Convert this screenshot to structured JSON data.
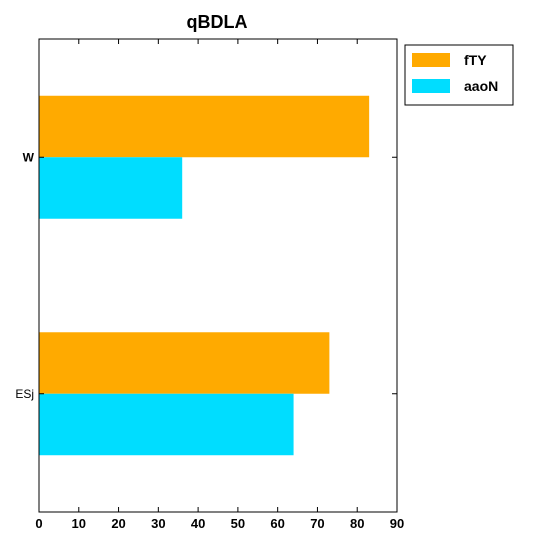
{
  "chart_data": {
    "type": "bar",
    "orientation": "horizontal",
    "title": "qBDLA",
    "xlabel": "",
    "ylabel": "",
    "categories": [
      "W",
      "ESj"
    ],
    "category_label_weights": [
      "bold",
      "normal"
    ],
    "series": [
      {
        "name": "fTY",
        "values": [
          83,
          73
        ],
        "color": "#ffaa00"
      },
      {
        "name": "aaoN",
        "values": [
          36,
          64
        ],
        "color": "#00ddff"
      }
    ],
    "xlim": [
      0,
      90
    ],
    "xticks": [
      0,
      10,
      20,
      30,
      40,
      50,
      60,
      70,
      80,
      90
    ],
    "grid": false,
    "legend": "top-right, outside plot"
  }
}
